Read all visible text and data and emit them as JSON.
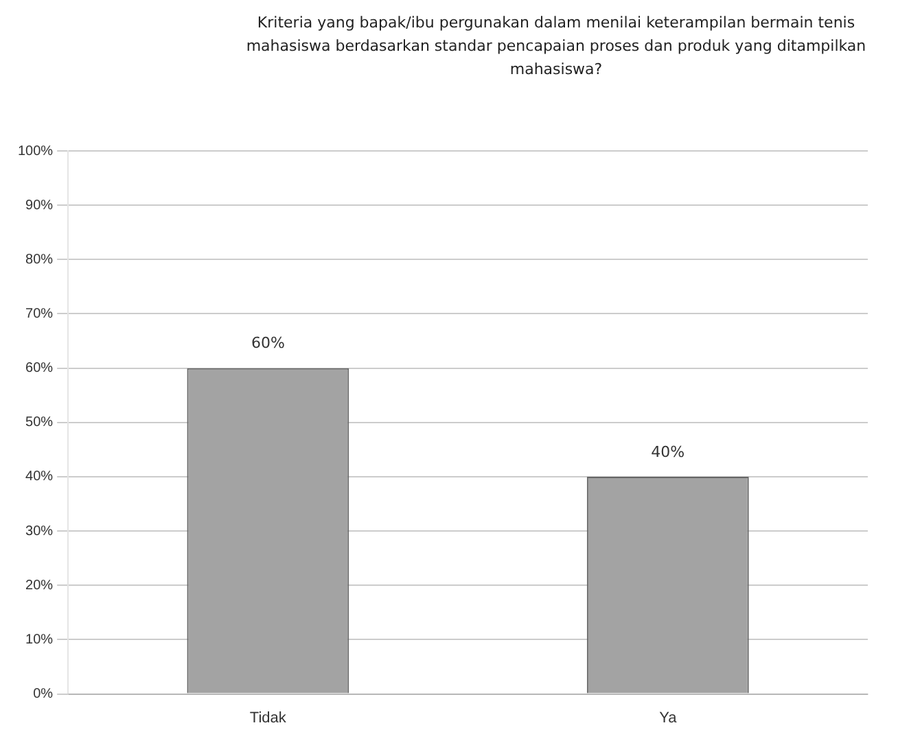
{
  "chart_data": {
    "type": "bar",
    "title": "Kriteria yang bapak/ibu pergunakan dalam menilai keterampilan bermain tenis mahasiswa berdasarkan standar pencapaian proses dan produk yang ditampilkan mahasiswa?",
    "categories": [
      "Tidak",
      "Ya"
    ],
    "values": [
      60,
      40
    ],
    "value_labels": [
      "60%",
      "40%"
    ],
    "color": "#a3a3a3",
    "ylim": [
      0,
      100
    ],
    "yticks": [
      {
        "value": 0,
        "label": "0%"
      },
      {
        "value": 10,
        "label": "10%"
      },
      {
        "value": 20,
        "label": "20%"
      },
      {
        "value": 30,
        "label": "30%"
      },
      {
        "value": 40,
        "label": "40%"
      },
      {
        "value": 50,
        "label": "50%"
      },
      {
        "value": 60,
        "label": "60%"
      },
      {
        "value": 70,
        "label": "70%"
      },
      {
        "value": 80,
        "label": "80%"
      },
      {
        "value": 90,
        "label": "90%"
      },
      {
        "value": 100,
        "label": "100%"
      }
    ],
    "grid": "y",
    "legend": false
  }
}
